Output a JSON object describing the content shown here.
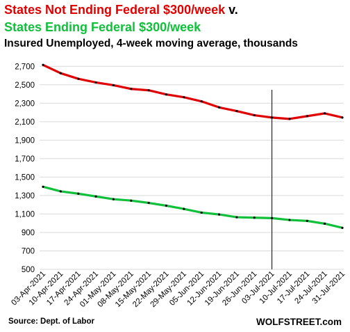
{
  "chart_data": {
    "type": "line",
    "title_line1_a": "States Not Ending Federal $300/week",
    "title_line1_b": " v.",
    "title_line2": "States Ending Federal $300/week",
    "subtitle": "Insured Unemployed, 4-week moving average, thousands",
    "x": [
      "03-Apr-2021",
      "10-Apr-2021",
      "17-Apr-2021",
      "24-Apr-2021",
      "01-May-2021",
      "08-May-2021",
      "15-May-2021",
      "22-May-2021",
      "29-May-2021",
      "05-Jun-2021",
      "12-Jun-2021",
      "19-Jun-2021",
      "26-Jun-2021",
      "03-Jul-2021",
      "10-Jul-2021",
      "17-Jul-2021",
      "24-Jul-2021",
      "31-Jul-2021"
    ],
    "series": [
      {
        "name": "States Not Ending Federal $300/week",
        "color": "#e00000",
        "values": [
          2715,
          2625,
          2565,
          2525,
          2495,
          2455,
          2440,
          2395,
          2365,
          2320,
          2255,
          2215,
          2170,
          2145,
          2130,
          2160,
          2190,
          2145
        ]
      },
      {
        "name": "States Ending Federal $300/week",
        "color": "#10c03a",
        "values": [
          1395,
          1345,
          1320,
          1290,
          1260,
          1245,
          1220,
          1190,
          1155,
          1115,
          1095,
          1065,
          1060,
          1055,
          1035,
          1025,
          995,
          950
        ]
      }
    ],
    "yticks": [
      500,
      700,
      900,
      1100,
      1300,
      1500,
      1700,
      1900,
      2100,
      2300,
      2500,
      2700
    ],
    "ylim": [
      500,
      2800
    ],
    "grid": true,
    "vline_at": "03-Jul-2021",
    "source": "Source: Dept. of Labor",
    "brand": "WOLFSTREET.com"
  }
}
